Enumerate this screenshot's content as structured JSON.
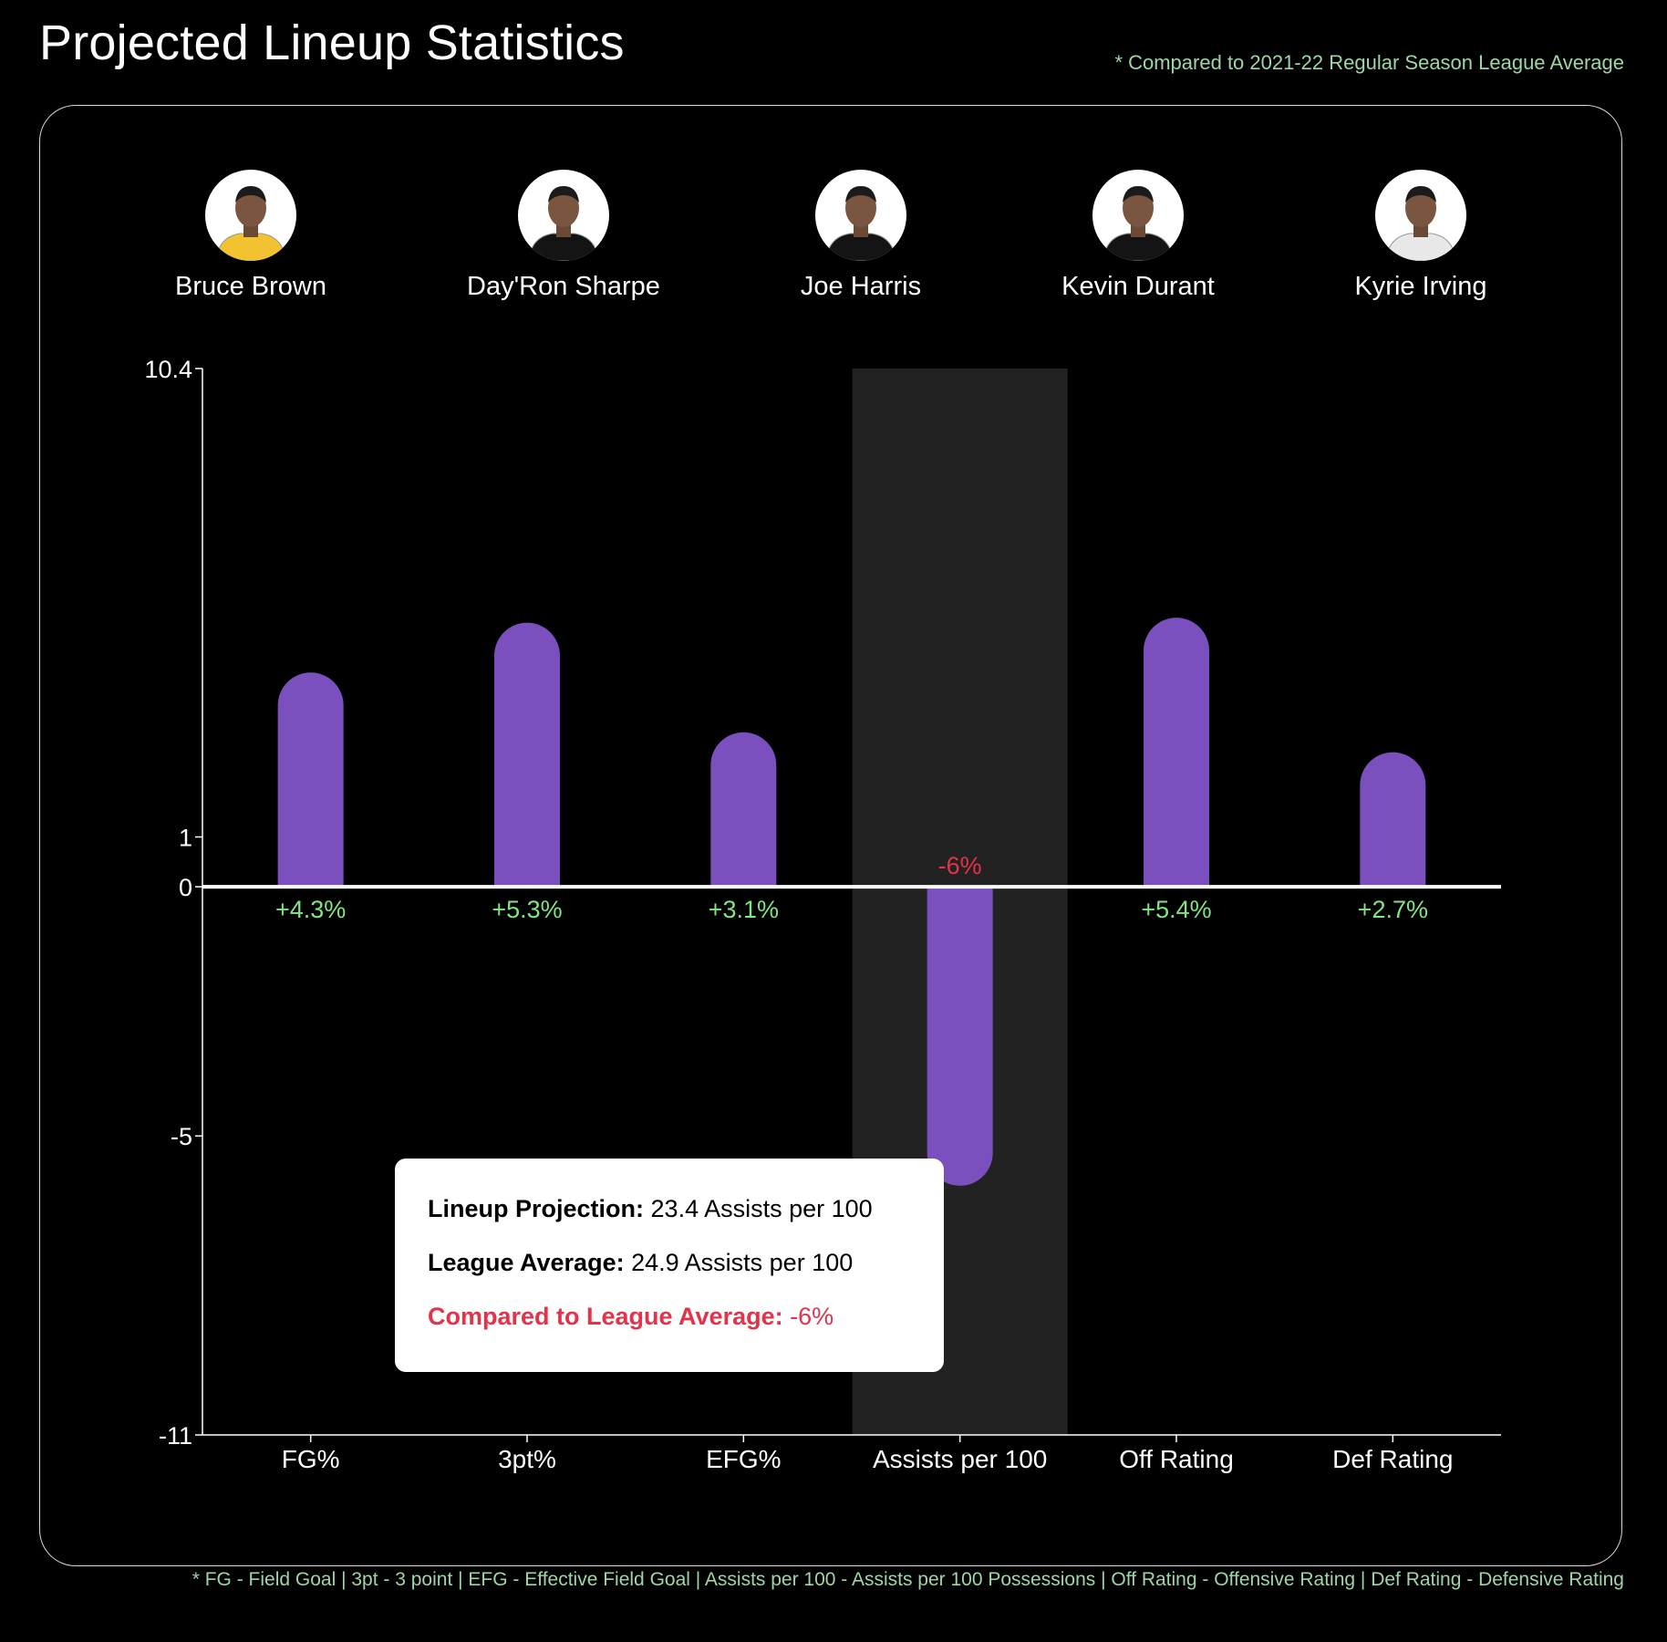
{
  "title": "Projected Lineup Statistics",
  "top_note": "* Compared to 2021-22 Regular Season League Average",
  "bottom_note": "* FG - Field Goal | 3pt - 3 point | EFG - Effective Field Goal | Assists per 100 - Assists per 100 Possessions | Off Rating - Offensive Rating | Def Rating - Defensive Rating",
  "players": [
    {
      "name": "Bruce Brown",
      "jersey": "gold"
    },
    {
      "name": "Day'Ron Sharpe",
      "jersey": "black"
    },
    {
      "name": "Joe Harris",
      "jersey": "black"
    },
    {
      "name": "Kevin Durant",
      "jersey": "black"
    },
    {
      "name": "Kyrie Irving",
      "jersey": "white"
    }
  ],
  "tooltip": {
    "projection_label": "Lineup Projection:",
    "projection_value": "23.4 Assists per 100",
    "average_label": "League Average:",
    "average_value": "24.9 Assists per 100",
    "compare_label": "Compared to League Average:",
    "compare_value": "-6%"
  },
  "colors": {
    "bar": "#7c4fbf",
    "positive_label": "#7ee87e",
    "negative_label": "#e2334a",
    "highlight_band": "#222222",
    "axis": "#ffffff"
  },
  "chart_data": {
    "type": "bar",
    "categories": [
      "FG%",
      "3pt%",
      "EFG%",
      "Assists per 100",
      "Off Rating",
      "Def Rating"
    ],
    "values": [
      4.3,
      5.3,
      3.1,
      -6,
      5.4,
      2.7
    ],
    "value_labels": [
      "+4.3%",
      "+5.3%",
      "+3.1%",
      "-6%",
      "+5.4%",
      "+2.7%"
    ],
    "ylim": [
      -11,
      10.4
    ],
    "yticks": [
      10.4,
      1,
      0,
      -5,
      -11
    ],
    "highlighted_category": "Assists per 100",
    "title": "",
    "xlabel": "",
    "ylabel": "",
    "grid": false
  }
}
